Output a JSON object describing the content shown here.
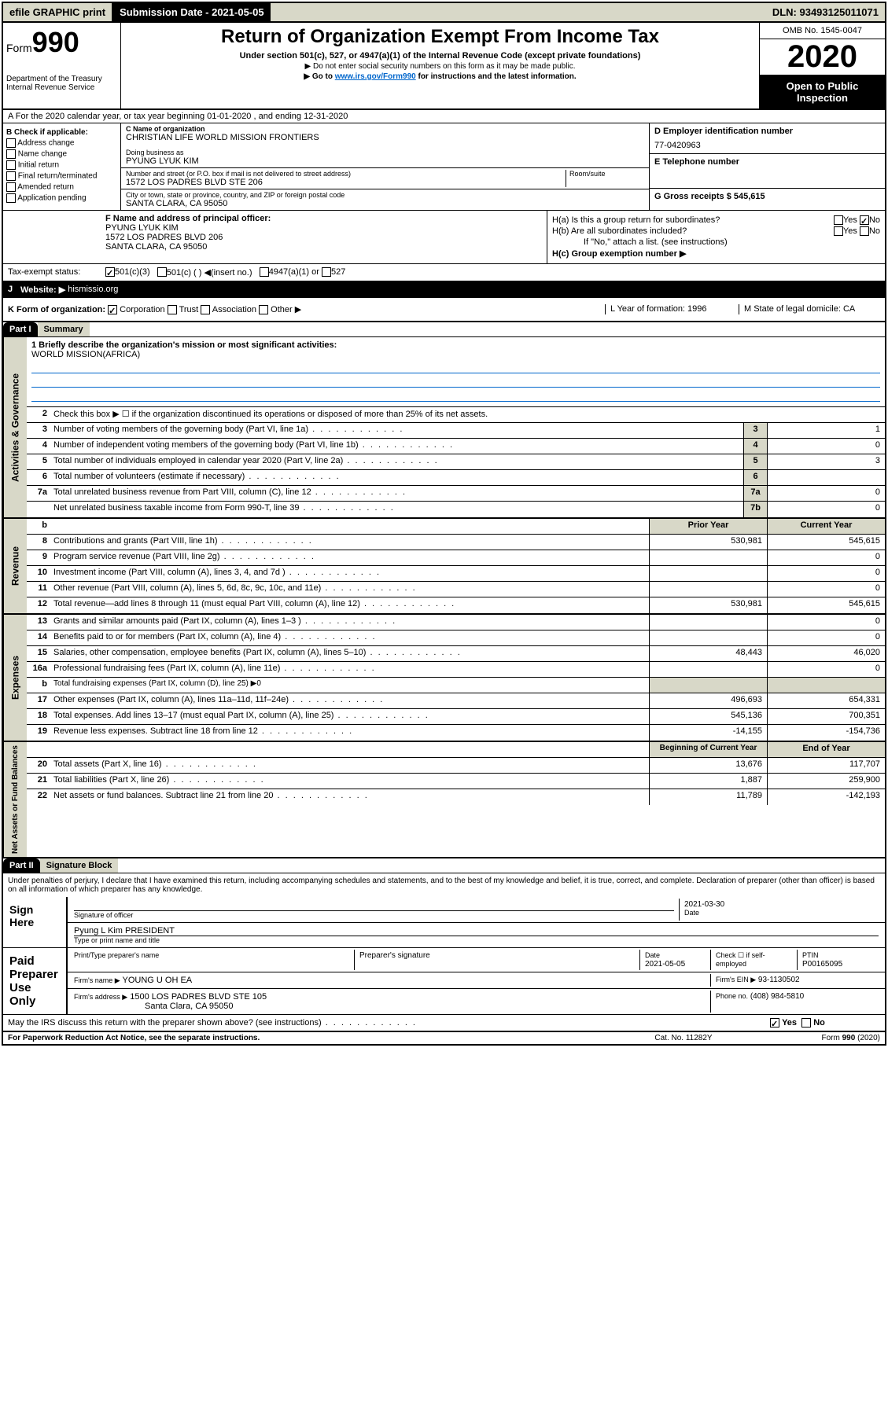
{
  "topbar": {
    "efile": "efile GRAPHIC print",
    "subdate": "Submission Date - 2021-05-05",
    "dln": "DLN: 93493125011071"
  },
  "header": {
    "form": "Form",
    "formnum": "990",
    "dept": "Department of the Treasury",
    "irs": "Internal Revenue Service",
    "title": "Return of Organization Exempt From Income Tax",
    "subtitle": "Under section 501(c), 527, or 4947(a)(1) of the Internal Revenue Code (except private foundations)",
    "note1": "▶ Do not enter social security numbers on this form as it may be made public.",
    "note2_pre": "▶ Go to ",
    "note2_link": "www.irs.gov/Form990",
    "note2_post": " for instructions and the latest information.",
    "omb": "OMB No. 1545-0047",
    "year": "2020",
    "opento": "Open to Public Inspection"
  },
  "row_a": "A For the 2020 calendar year, or tax year beginning 01-01-2020    , and ending 12-31-2020",
  "col_b": {
    "label": "B Check if applicable:",
    "items": [
      "Address change",
      "Name change",
      "Initial return",
      "Final return/terminated",
      "Amended return",
      "Application pending"
    ]
  },
  "col_c": {
    "name_label": "C Name of organization",
    "name": "CHRISTIAN LIFE WORLD MISSION FRONTIERS",
    "dba_label": "Doing business as",
    "dba": "PYUNG LYUK KIM",
    "addr_label": "Number and street (or P.O. box if mail is not delivered to street address)",
    "addr": "1572 LOS PADRES BLVD STE 206",
    "room_label": "Room/suite",
    "city_label": "City or town, state or province, country, and ZIP or foreign postal code",
    "city": "SANTA CLARA, CA  95050"
  },
  "col_d": {
    "label": "D Employer identification number",
    "val": "77-0420963"
  },
  "col_e": {
    "label": "E Telephone number"
  },
  "col_g": {
    "label": "G Gross receipts $ 545,615"
  },
  "col_f": {
    "label": "F  Name and address of principal officer:",
    "name": "PYUNG LYUK KIM",
    "addr1": "1572 LOS PADRES BLVD 206",
    "addr2": "SANTA CLARA, CA  95050"
  },
  "col_h": {
    "a": "H(a)  Is this a group return for subordinates?",
    "b": "H(b)  Are all subordinates included?",
    "b_note": "If \"No,\" attach a list. (see instructions)",
    "c": "H(c)  Group exemption number ▶",
    "yes": "Yes",
    "no": "No"
  },
  "tax_status": {
    "label": "Tax-exempt status:",
    "opt1": "501(c)(3)",
    "opt2": "501(c) (  ) ◀(insert no.)",
    "opt3": "4947(a)(1) or",
    "opt4": "527"
  },
  "row_j": {
    "label": "J",
    "website": "Website: ▶",
    "val": "hismissio.org"
  },
  "row_k": {
    "label": "K Form of organization:",
    "opts": [
      "Corporation",
      "Trust",
      "Association",
      "Other ▶"
    ],
    "l": "L Year of formation: 1996",
    "m": "M State of legal domicile: CA"
  },
  "part1": {
    "hdr": "Part I",
    "title": "Summary"
  },
  "mission": {
    "q": "1  Briefly describe the organization's mission or most significant activities:",
    "a": "WORLD MISSION(AFRICA)"
  },
  "gov_lines": [
    {
      "n": "2",
      "t": "Check this box ▶ ☐  if the organization discontinued its operations or disposed of more than 25% of its net assets."
    },
    {
      "n": "3",
      "t": "Number of voting members of the governing body (Part VI, line 1a)",
      "box": "3",
      "v": "1"
    },
    {
      "n": "4",
      "t": "Number of independent voting members of the governing body (Part VI, line 1b)",
      "box": "4",
      "v": "0"
    },
    {
      "n": "5",
      "t": "Total number of individuals employed in calendar year 2020 (Part V, line 2a)",
      "box": "5",
      "v": "3"
    },
    {
      "n": "6",
      "t": "Total number of volunteers (estimate if necessary)",
      "box": "6",
      "v": ""
    },
    {
      "n": "7a",
      "t": "Total unrelated business revenue from Part VIII, column (C), line 12",
      "box": "7a",
      "v": "0"
    },
    {
      "n": "",
      "t": "Net unrelated business taxable income from Form 990-T, line 39",
      "box": "7b",
      "v": "0"
    }
  ],
  "yr_hdr": {
    "b": "b",
    "prior": "Prior Year",
    "cur": "Current Year"
  },
  "rev_lines": [
    {
      "n": "8",
      "t": "Contributions and grants (Part VIII, line 1h)",
      "p": "530,981",
      "c": "545,615"
    },
    {
      "n": "9",
      "t": "Program service revenue (Part VIII, line 2g)",
      "p": "",
      "c": "0"
    },
    {
      "n": "10",
      "t": "Investment income (Part VIII, column (A), lines 3, 4, and 7d )",
      "p": "",
      "c": "0"
    },
    {
      "n": "11",
      "t": "Other revenue (Part VIII, column (A), lines 5, 6d, 8c, 9c, 10c, and 11e)",
      "p": "",
      "c": "0"
    },
    {
      "n": "12",
      "t": "Total revenue—add lines 8 through 11 (must equal Part VIII, column (A), line 12)",
      "p": "530,981",
      "c": "545,615"
    }
  ],
  "exp_lines": [
    {
      "n": "13",
      "t": "Grants and similar amounts paid (Part IX, column (A), lines 1–3 )",
      "p": "",
      "c": "0"
    },
    {
      "n": "14",
      "t": "Benefits paid to or for members (Part IX, column (A), line 4)",
      "p": "",
      "c": "0"
    },
    {
      "n": "15",
      "t": "Salaries, other compensation, employee benefits (Part IX, column (A), lines 5–10)",
      "p": "48,443",
      "c": "46,020"
    },
    {
      "n": "16a",
      "t": "Professional fundraising fees (Part IX, column (A), line 11e)",
      "p": "",
      "c": "0"
    },
    {
      "n": "b",
      "t": "Total fundraising expenses (Part IX, column (D), line 25) ▶0",
      "nosplit": true
    },
    {
      "n": "17",
      "t": "Other expenses (Part IX, column (A), lines 11a–11d, 11f–24e)",
      "p": "496,693",
      "c": "654,331"
    },
    {
      "n": "18",
      "t": "Total expenses. Add lines 13–17 (must equal Part IX, column (A), line 25)",
      "p": "545,136",
      "c": "700,351"
    },
    {
      "n": "19",
      "t": "Revenue less expenses. Subtract line 18 from line 12",
      "p": "-14,155",
      "c": "-154,736"
    }
  ],
  "na_hdr": {
    "prior": "Beginning of Current Year",
    "cur": "End of Year"
  },
  "na_lines": [
    {
      "n": "20",
      "t": "Total assets (Part X, line 16)",
      "p": "13,676",
      "c": "117,707"
    },
    {
      "n": "21",
      "t": "Total liabilities (Part X, line 26)",
      "p": "1,887",
      "c": "259,900"
    },
    {
      "n": "22",
      "t": "Net assets or fund balances. Subtract line 21 from line 20",
      "p": "11,789",
      "c": "-142,193"
    }
  ],
  "part2": {
    "hdr": "Part II",
    "title": "Signature Block"
  },
  "sig": {
    "decl": "Under penalties of perjury, I declare that I have examined this return, including accompanying schedules and statements, and to the best of my knowledge and belief, it is true, correct, and complete. Declaration of preparer (other than officer) is based on all information of which preparer has any knowledge.",
    "sign_here": "Sign Here",
    "sig_officer": "Signature of officer",
    "date": "2021-03-30",
    "date_label": "Date",
    "name": "Pyung L Kim  PRESIDENT",
    "name_label": "Type or print name and title",
    "paid": "Paid Preparer Use Only",
    "prep_name_label": "Print/Type preparer's name",
    "prep_sig_label": "Preparer's signature",
    "prep_date_label": "Date",
    "prep_date": "2021-05-05",
    "check_label": "Check ☐ if self-employed",
    "ptin_label": "PTIN",
    "ptin": "P00165095",
    "firm_name_label": "Firm's name    ▶",
    "firm_name": "YOUNG U OH EA",
    "firm_ein_label": "Firm's EIN ▶",
    "firm_ein": "93-1130502",
    "firm_addr_label": "Firm's address ▶",
    "firm_addr1": "1500 LOS PADRES BLVD STE 105",
    "firm_addr2": "Santa Clara, CA  95050",
    "phone_label": "Phone no.",
    "phone": "(408) 984-5810"
  },
  "discuss": "May the IRS discuss this return with the preparer shown above? (see instructions)",
  "footer": {
    "paperwork": "For Paperwork Reduction Act Notice, see the separate instructions.",
    "cat": "Cat. No. 11282Y",
    "form": "Form 990 (2020)"
  },
  "side_labels": {
    "gov": "Activities & Governance",
    "rev": "Revenue",
    "exp": "Expenses",
    "na": "Net Assets or Fund Balances"
  }
}
